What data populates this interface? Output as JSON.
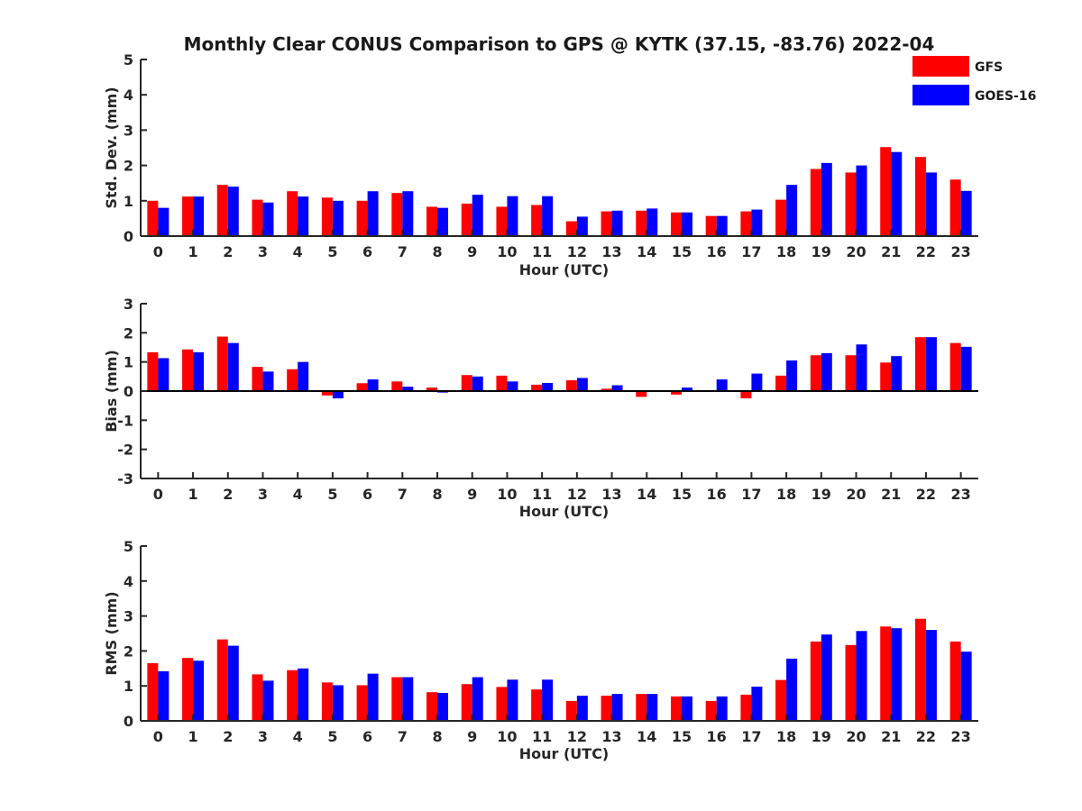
{
  "title": "Monthly Clear CONUS Comparison to GPS @ KYTK (37.15, -83.76) 2022-04",
  "colors": {
    "GFS": "#ff0000",
    "GOES-16": "#0000ff"
  },
  "legend": {
    "placement": "top-right",
    "entries": [
      "GFS",
      "GOES-16"
    ]
  },
  "chart_data": [
    {
      "type": "bar",
      "xlabel": "Hour (UTC)",
      "ylabel": "Std. Dev. (mm)",
      "ylim": [
        0,
        5
      ],
      "yticks": [
        0,
        1,
        2,
        3,
        4,
        5
      ],
      "categories": [
        0,
        1,
        2,
        3,
        4,
        5,
        6,
        7,
        8,
        9,
        10,
        11,
        12,
        13,
        14,
        15,
        16,
        17,
        18,
        19,
        20,
        21,
        22,
        23
      ],
      "series": [
        {
          "name": "GFS",
          "values": [
            1.0,
            1.12,
            1.45,
            1.03,
            1.27,
            1.09,
            1.0,
            1.22,
            0.83,
            0.92,
            0.83,
            0.88,
            0.42,
            0.7,
            0.72,
            0.67,
            0.57,
            0.7,
            1.03,
            1.9,
            1.8,
            2.52,
            2.24,
            1.6
          ]
        },
        {
          "name": "GOES-16",
          "values": [
            0.8,
            1.12,
            1.4,
            0.95,
            1.12,
            1.0,
            1.27,
            1.27,
            0.8,
            1.17,
            1.13,
            1.13,
            0.55,
            0.72,
            0.78,
            0.67,
            0.57,
            0.75,
            1.45,
            2.07,
            2.0,
            2.38,
            1.8,
            1.28
          ]
        }
      ]
    },
    {
      "type": "bar",
      "xlabel": "Hour (UTC)",
      "ylabel": "Bias (mm)",
      "ylim": [
        -3,
        3
      ],
      "yticks": [
        -3,
        -2,
        -1,
        0,
        1,
        2,
        3
      ],
      "categories": [
        0,
        1,
        2,
        3,
        4,
        5,
        6,
        7,
        8,
        9,
        10,
        11,
        12,
        13,
        14,
        15,
        16,
        17,
        18,
        19,
        20,
        21,
        22,
        23
      ],
      "series": [
        {
          "name": "GFS",
          "values": [
            1.33,
            1.43,
            1.87,
            0.83,
            0.75,
            -0.15,
            0.27,
            0.33,
            0.12,
            0.55,
            0.53,
            0.22,
            0.37,
            0.08,
            -0.2,
            -0.12,
            0.03,
            -0.25,
            0.53,
            1.23,
            1.23,
            0.98,
            1.85,
            1.65
          ]
        },
        {
          "name": "GOES-16",
          "values": [
            1.13,
            1.33,
            1.65,
            0.67,
            1.0,
            -0.25,
            0.4,
            0.15,
            -0.05,
            0.5,
            0.33,
            0.28,
            0.45,
            0.2,
            0.0,
            0.12,
            0.4,
            0.6,
            1.05,
            1.3,
            1.6,
            1.2,
            1.85,
            1.52
          ]
        }
      ]
    },
    {
      "type": "bar",
      "xlabel": "Hour (UTC)",
      "ylabel": "RMS (mm)",
      "ylim": [
        0,
        5
      ],
      "yticks": [
        0,
        1,
        2,
        3,
        4,
        5
      ],
      "categories": [
        0,
        1,
        2,
        3,
        4,
        5,
        6,
        7,
        8,
        9,
        10,
        11,
        12,
        13,
        14,
        15,
        16,
        17,
        18,
        19,
        20,
        21,
        22,
        23
      ],
      "series": [
        {
          "name": "GFS",
          "values": [
            1.65,
            1.8,
            2.33,
            1.33,
            1.45,
            1.1,
            1.02,
            1.25,
            0.82,
            1.05,
            0.97,
            0.9,
            0.57,
            0.72,
            0.77,
            0.7,
            0.57,
            0.75,
            1.17,
            2.27,
            2.17,
            2.7,
            2.92,
            2.27
          ]
        },
        {
          "name": "GOES-16",
          "values": [
            1.42,
            1.72,
            2.15,
            1.15,
            1.5,
            1.02,
            1.35,
            1.25,
            0.8,
            1.25,
            1.18,
            1.18,
            0.72,
            0.77,
            0.77,
            0.7,
            0.7,
            0.98,
            1.78,
            2.47,
            2.57,
            2.65,
            2.6,
            1.98
          ]
        }
      ]
    }
  ]
}
